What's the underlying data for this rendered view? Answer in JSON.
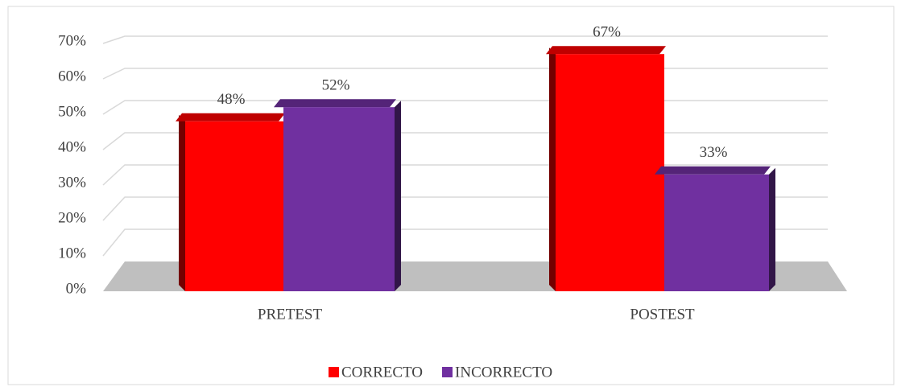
{
  "chart_data": {
    "type": "bar3d",
    "categories": [
      "PRETEST",
      "POSTEST"
    ],
    "series": [
      {
        "name": "CORRECTO",
        "color": "#ff0000",
        "values": [
          48,
          67
        ],
        "value_labels": [
          "48%",
          "67%"
        ]
      },
      {
        "name": "INCORRECTO",
        "color": "#7030a0",
        "values": [
          52,
          33
        ],
        "value_labels": [
          "52%",
          "33%"
        ]
      }
    ],
    "ylim": [
      0,
      70
    ],
    "yticks": [
      {
        "value": 0,
        "label": "0%"
      },
      {
        "value": 10,
        "label": "10%"
      },
      {
        "value": 20,
        "label": "20%"
      },
      {
        "value": 30,
        "label": "30%"
      },
      {
        "value": 40,
        "label": "40%"
      },
      {
        "value": 50,
        "label": "50%"
      },
      {
        "value": 60,
        "label": "60%"
      },
      {
        "value": 70,
        "label": "70%"
      }
    ],
    "grid": true,
    "legend": "bottom"
  }
}
